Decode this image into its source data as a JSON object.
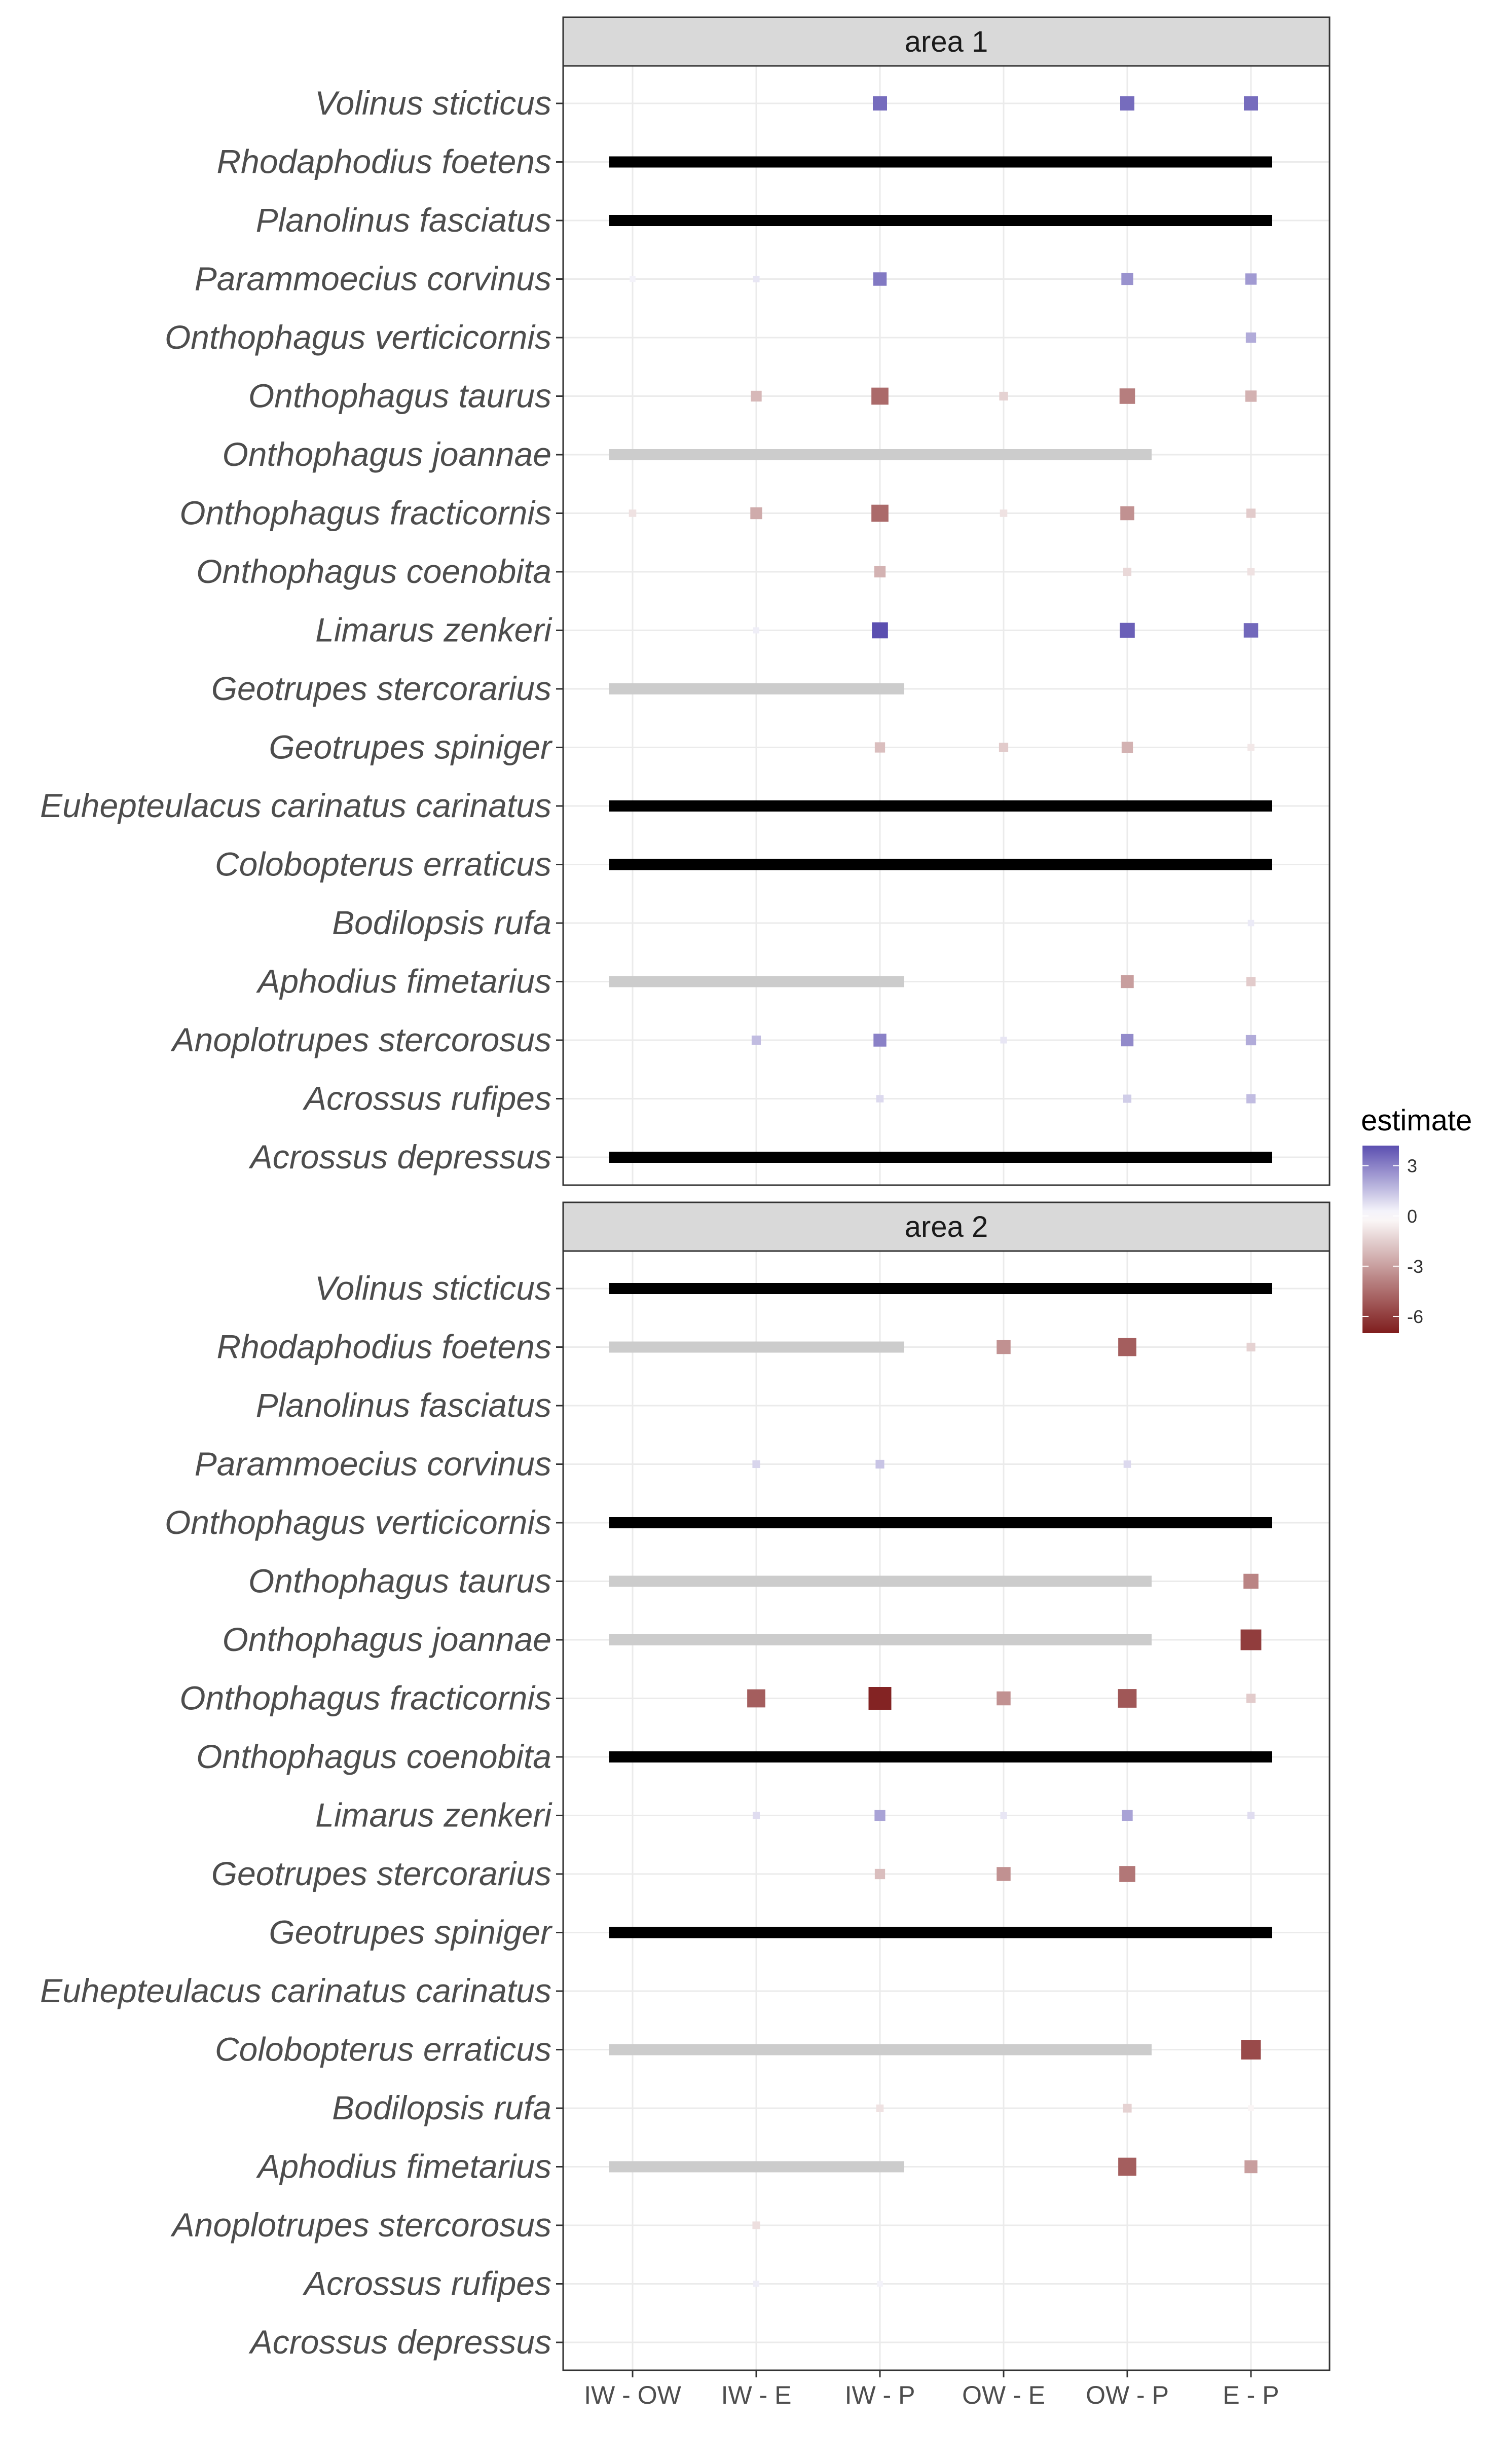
{
  "chart_data": {
    "type": "heatmap",
    "legend": {
      "title": "estimate",
      "ticks": [
        "3",
        "0",
        "-3",
        "-6"
      ],
      "tick_values": [
        3,
        0,
        -3,
        -6
      ],
      "range": [
        -7,
        4.2
      ],
      "placement": "right",
      "colors": {
        "low": "#7f1d1d",
        "mid": "#ffffff",
        "high": "#5b4fb0"
      }
    },
    "x_categories": [
      "IW - OW",
      "IW - E",
      "IW - P",
      "OW - E",
      "OW - P",
      "E - P"
    ],
    "species": [
      "Volinus sticticus",
      "Rhodaphodius foetens",
      "Planolinus fasciatus",
      "Parammoecius corvinus",
      "Onthophagus verticicornis",
      "Onthophagus taurus",
      "Onthophagus joannae",
      "Onthophagus fracticornis",
      "Onthophagus coenobita",
      "Limarus zenkeri",
      "Geotrupes stercorarius",
      "Geotrupes spiniger",
      "Euhepteulacus carinatus carinatus",
      "Colobopterus erraticus",
      "Bodilopsis rufa",
      "Aphodius fimetarius",
      "Anoplotrupes stercorosus",
      "Acrossus rufipes",
      "Acrossus depressus"
    ],
    "facets": [
      {
        "title": "area 1",
        "black_bars": [
          "Rhodaphodius foetens",
          "Planolinus fasciatus",
          "Euhepteulacus carinatus carinatus",
          "Colobopterus erraticus",
          "Acrossus depressus"
        ],
        "gray_bars": [
          {
            "species": "Onthophagus joannae",
            "span": [
              "IW - OW",
              "OW - P"
            ]
          },
          {
            "species": "Geotrupes stercorarius",
            "span": [
              "IW - OW",
              "IW - P"
            ]
          },
          {
            "species": "Aphodius fimetarius",
            "span": [
              "IW - OW",
              "IW - P"
            ]
          }
        ],
        "cells": [
          [
            "Volinus sticticus",
            "IW - P",
            3.5
          ],
          [
            "Volinus sticticus",
            "OW - P",
            3.5
          ],
          [
            "Volinus sticticus",
            "E - P",
            3.5
          ],
          [
            "Parammoecius corvinus",
            "IW - OW",
            0.3
          ],
          [
            "Parammoecius corvinus",
            "IW - E",
            0.6
          ],
          [
            "Parammoecius corvinus",
            "IW - P",
            3.2
          ],
          [
            "Parammoecius corvinus",
            "OW - P",
            2.6
          ],
          [
            "Parammoecius corvinus",
            "E - P",
            2.4
          ],
          [
            "Onthophagus verticicornis",
            "E - P",
            2.0
          ],
          [
            "Onthophagus taurus",
            "IW - E",
            -2.2
          ],
          [
            "Onthophagus taurus",
            "IW - P",
            -4.6
          ],
          [
            "Onthophagus taurus",
            "OW - E",
            -1.4
          ],
          [
            "Onthophagus taurus",
            "OW - P",
            -4.0
          ],
          [
            "Onthophagus taurus",
            "E - P",
            -2.4
          ],
          [
            "Onthophagus fracticornis",
            "IW - OW",
            -0.9
          ],
          [
            "Onthophagus fracticornis",
            "IW - E",
            -2.6
          ],
          [
            "Onthophagus fracticornis",
            "IW - P",
            -4.6
          ],
          [
            "Onthophagus fracticornis",
            "OW - E",
            -0.9
          ],
          [
            "Onthophagus fracticornis",
            "OW - P",
            -3.4
          ],
          [
            "Onthophagus fracticornis",
            "E - P",
            -1.6
          ],
          [
            "Onthophagus coenobita",
            "IW - P",
            -2.4
          ],
          [
            "Onthophagus coenobita",
            "OW - P",
            -1.2
          ],
          [
            "Onthophagus coenobita",
            "E - P",
            -0.9
          ],
          [
            "Limarus zenkeri",
            "IW - E",
            0.4
          ],
          [
            "Limarus zenkeri",
            "IW - P",
            4.2
          ],
          [
            "Limarus zenkeri",
            "OW - P",
            3.8
          ],
          [
            "Limarus zenkeri",
            "E - P",
            3.6
          ],
          [
            "Geotrupes spiniger",
            "IW - P",
            -2.0
          ],
          [
            "Geotrupes spiniger",
            "OW - E",
            -1.6
          ],
          [
            "Geotrupes spiniger",
            "OW - P",
            -2.4
          ],
          [
            "Geotrupes spiniger",
            "E - P",
            -0.7
          ],
          [
            "Bodilopsis rufa",
            "E - P",
            0.5
          ],
          [
            "Aphodius fimetarius",
            "OW - P",
            -3.0
          ],
          [
            "Aphodius fimetarius",
            "E - P",
            -1.6
          ],
          [
            "Anoplotrupes stercorosus",
            "IW - E",
            1.6
          ],
          [
            "Anoplotrupes stercorosus",
            "IW - P",
            3.0
          ],
          [
            "Anoplotrupes stercorosus",
            "OW - E",
            0.6
          ],
          [
            "Anoplotrupes stercorosus",
            "OW - P",
            2.8
          ],
          [
            "Anoplotrupes stercorosus",
            "E - P",
            2.0
          ],
          [
            "Acrossus rufipes",
            "IW - P",
            0.9
          ],
          [
            "Acrossus rufipes",
            "OW - P",
            1.2
          ],
          [
            "Acrossus rufipes",
            "E - P",
            1.6
          ]
        ]
      },
      {
        "title": "area 2",
        "black_bars": [
          "Volinus sticticus",
          "Onthophagus verticicornis",
          "Onthophagus coenobita",
          "Geotrupes spiniger"
        ],
        "gray_bars": [
          {
            "species": "Rhodaphodius foetens",
            "span": [
              "IW - OW",
              "IW - P"
            ]
          },
          {
            "species": "Onthophagus taurus",
            "span": [
              "IW - OW",
              "OW - P"
            ]
          },
          {
            "species": "Onthophagus joannae",
            "span": [
              "IW - OW",
              "OW - P"
            ]
          },
          {
            "species": "Colobopterus erraticus",
            "span": [
              "IW - OW",
              "OW - P"
            ]
          },
          {
            "species": "Aphodius fimetarius",
            "span": [
              "IW - OW",
              "IW - P"
            ]
          }
        ],
        "cells": [
          [
            "Rhodaphodius foetens",
            "OW - E",
            -3.4
          ],
          [
            "Rhodaphodius foetens",
            "OW - P",
            -5.0
          ],
          [
            "Rhodaphodius foetens",
            "E - P",
            -1.4
          ],
          [
            "Parammoecius corvinus",
            "IW - E",
            1.0
          ],
          [
            "Parammoecius corvinus",
            "IW - P",
            1.4
          ],
          [
            "Parammoecius corvinus",
            "OW - P",
            0.9
          ],
          [
            "Onthophagus taurus",
            "E - P",
            -3.8
          ],
          [
            "Onthophagus joannae",
            "E - P",
            -6.0
          ],
          [
            "Onthophagus fracticornis",
            "IW - E",
            -5.0
          ],
          [
            "Onthophagus fracticornis",
            "IW - P",
            -6.8
          ],
          [
            "Onthophagus fracticornis",
            "OW - E",
            -3.4
          ],
          [
            "Onthophagus fracticornis",
            "OW - P",
            -5.2
          ],
          [
            "Onthophagus fracticornis",
            "E - P",
            -1.6
          ],
          [
            "Limarus zenkeri",
            "IW - E",
            0.8
          ],
          [
            "Limarus zenkeri",
            "IW - P",
            2.2
          ],
          [
            "Limarus zenkeri",
            "OW - E",
            0.6
          ],
          [
            "Limarus zenkeri",
            "OW - P",
            2.2
          ],
          [
            "Limarus zenkeri",
            "E - P",
            0.8
          ],
          [
            "Geotrupes stercorarius",
            "IW - P",
            -2.0
          ],
          [
            "Geotrupes stercorarius",
            "OW - E",
            -3.4
          ],
          [
            "Geotrupes stercorarius",
            "OW - P",
            -4.2
          ],
          [
            "Colobopterus erraticus",
            "E - P",
            -5.6
          ],
          [
            "Bodilopsis rufa",
            "IW - P",
            -0.9
          ],
          [
            "Bodilopsis rufa",
            "OW - P",
            -1.4
          ],
          [
            "Bodilopsis rufa",
            "E - P",
            -0.3
          ],
          [
            "Aphodius fimetarius",
            "OW - P",
            -5.0
          ],
          [
            "Aphodius fimetarius",
            "E - P",
            -3.0
          ],
          [
            "Anoplotrupes stercorosus",
            "IW - E",
            -1.0
          ],
          [
            "Acrossus rufipes",
            "IW - E",
            0.4
          ],
          [
            "Acrossus rufipes",
            "IW - P",
            0.3
          ]
        ]
      }
    ]
  }
}
